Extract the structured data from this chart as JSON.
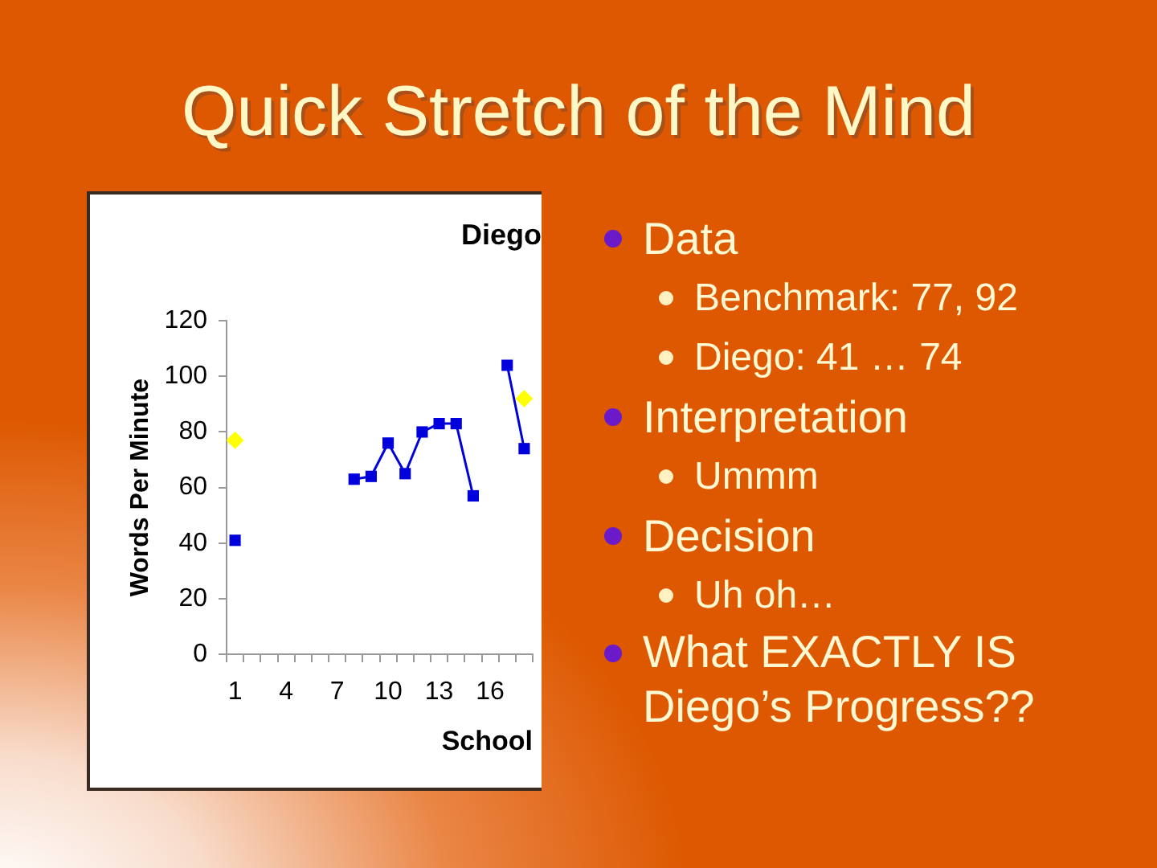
{
  "chart_data": {
    "type": "line",
    "title": "Quick Stretch of the Mind",
    "subtitle": "Diego",
    "xlabel": "School",
    "ylabel": "Words Per Minute",
    "categories": [
      "1",
      null,
      null,
      "4",
      null,
      null,
      "7",
      null,
      null,
      "10",
      null,
      null,
      "13",
      null,
      null,
      "16",
      null,
      null
    ],
    "series": [
      {
        "color": "#0000dd",
        "marker": "square",
        "values": [
          41,
          null,
          null,
          null,
          null,
          null,
          null,
          63,
          64,
          76,
          65,
          80,
          83,
          83,
          57,
          null,
          104,
          74
        ]
      },
      {
        "type": "scatter",
        "color": "#ffff00",
        "marker": "diamond",
        "values": [
          77,
          null,
          null,
          null,
          null,
          null,
          null,
          null,
          null,
          null,
          null,
          null,
          null,
          null,
          null,
          null,
          null,
          92
        ]
      }
    ],
    "ylim": [
      0,
      120
    ],
    "yticks": [
      0,
      20,
      40,
      60,
      80,
      100,
      120
    ],
    "grid": false,
    "legend": false,
    "annotations": [
      "Data",
      "Benchmark: 77, 92",
      "Diego: 41 … 74",
      "Interpretation",
      "Ummm",
      "Decision",
      "Uh oh…",
      "What EXACTLY IS Diego’s Progress??"
    ]
  }
}
